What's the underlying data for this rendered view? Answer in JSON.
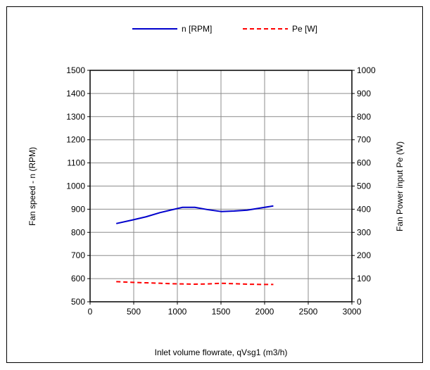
{
  "chart_data": {
    "type": "line",
    "xlabel": "Inlet volume flowrate, qVsg1 (m3/h)",
    "ylabel": "Fan speed - n (RPM)",
    "y2label": "Fan Power input Pe (W)",
    "xlim": [
      0,
      3000
    ],
    "ylim": [
      500,
      1500
    ],
    "y2lim": [
      0,
      1000
    ],
    "x_ticks": [
      0,
      500,
      1000,
      1500,
      2000,
      2500,
      3000
    ],
    "y_ticks": [
      500,
      600,
      700,
      800,
      900,
      1000,
      1100,
      1200,
      1300,
      1400,
      1500
    ],
    "y2_ticks": [
      0,
      100,
      200,
      300,
      400,
      500,
      600,
      700,
      800,
      900,
      1000
    ],
    "grid": true,
    "legend_position": "top",
    "series": [
      {
        "name": "n  [RPM]",
        "axis": "left",
        "color": "#0000cc",
        "style": "solid",
        "x": [
          300,
          480,
          640,
          800,
          920,
          1060,
          1200,
          1350,
          1500,
          1650,
          1800,
          1950,
          2100
        ],
        "values": [
          838,
          853,
          867,
          885,
          896,
          908,
          908,
          898,
          890,
          892,
          896,
          905,
          914
        ]
      },
      {
        "name": "Pe [W]",
        "axis": "right",
        "color": "#ff0000",
        "style": "dashed",
        "x": [
          300,
          480,
          640,
          800,
          920,
          1060,
          1200,
          1350,
          1500,
          1650,
          1800,
          1950,
          2100
        ],
        "values": [
          87,
          84,
          82,
          80,
          78,
          77,
          76,
          77,
          80,
          78,
          76,
          75,
          75
        ]
      }
    ]
  }
}
